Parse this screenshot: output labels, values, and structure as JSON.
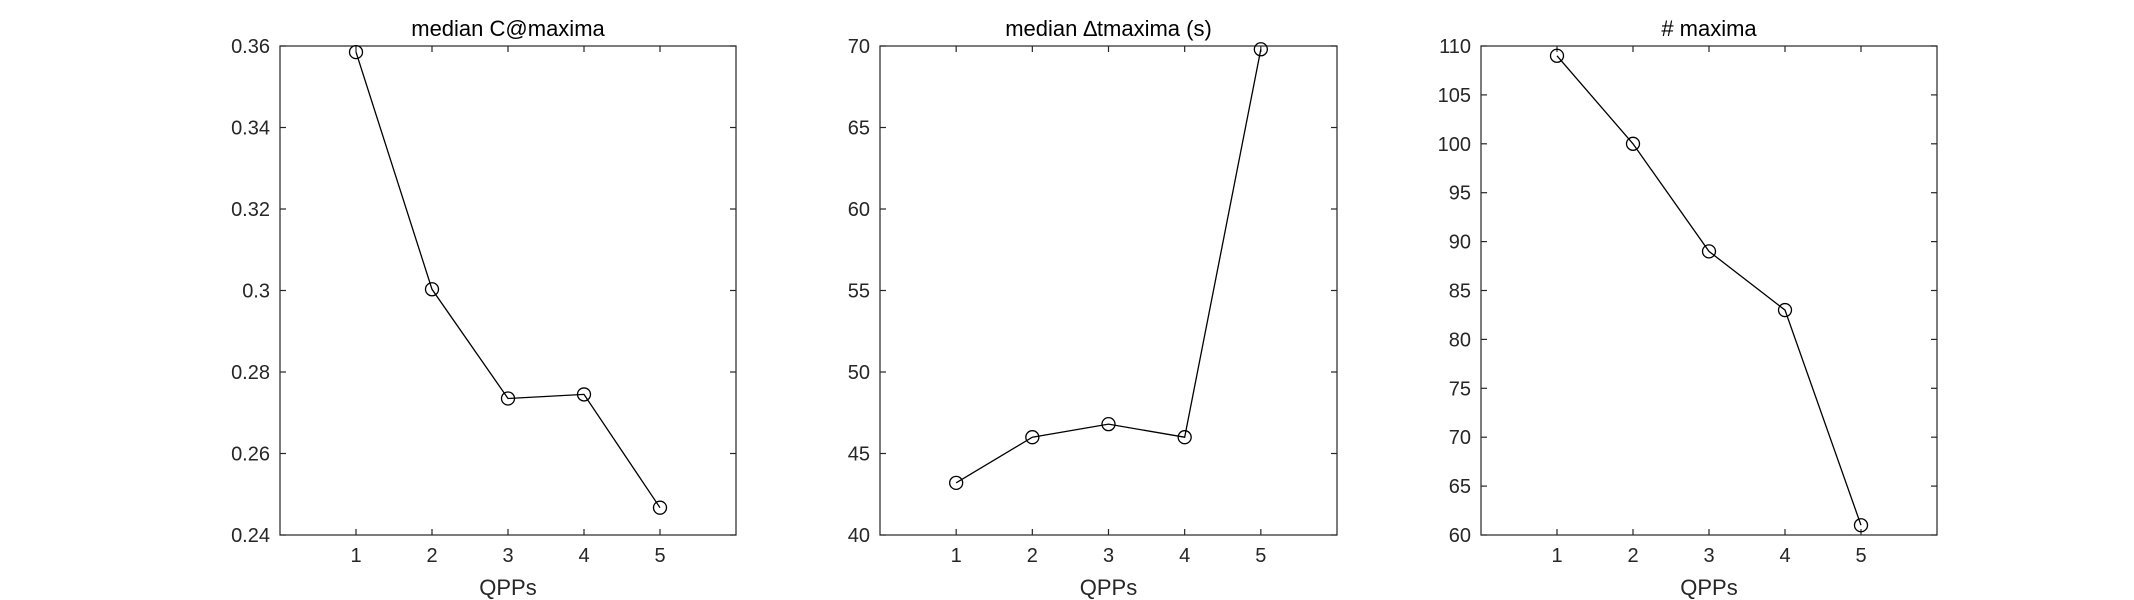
{
  "chart_data": [
    {
      "type": "line",
      "title": "median C@maxima",
      "xlabel": "QPPs",
      "ylabel": "",
      "x": [
        1,
        2,
        3,
        4,
        5
      ],
      "series": [
        {
          "values": [
            0.3585,
            0.3003,
            0.2735,
            0.2745,
            0.2467
          ]
        }
      ],
      "xlim": [
        0,
        6
      ],
      "ylim": [
        0.24,
        0.36
      ],
      "xticks": [
        "1",
        "2",
        "3",
        "4",
        "5"
      ],
      "yticks": [
        "0.24",
        "0.26",
        "0.28",
        "0.3",
        "0.32",
        "0.34",
        "0.36"
      ],
      "marker": "circle",
      "color": "#000000",
      "grid": false,
      "box": true
    },
    {
      "type": "line",
      "title": "median ∆tmaxima (s)",
      "xlabel": "QPPs",
      "ylabel": "",
      "x": [
        1,
        2,
        3,
        4,
        5
      ],
      "series": [
        {
          "values": [
            43.2,
            46.0,
            46.8,
            46.0,
            69.8
          ]
        }
      ],
      "xlim": [
        0,
        6
      ],
      "ylim": [
        40,
        70
      ],
      "xticks": [
        "1",
        "2",
        "3",
        "4",
        "5"
      ],
      "yticks": [
        "40",
        "45",
        "50",
        "55",
        "60",
        "65",
        "70"
      ],
      "marker": "circle",
      "color": "#000000",
      "grid": false,
      "box": true
    },
    {
      "type": "line",
      "title": "# maxima",
      "xlabel": "QPPs",
      "ylabel": "",
      "x": [
        1,
        2,
        3,
        4,
        5
      ],
      "series": [
        {
          "values": [
            109,
            100,
            89,
            83,
            61
          ]
        }
      ],
      "xlim": [
        0,
        6
      ],
      "ylim": [
        60,
        110
      ],
      "xticks": [
        "1",
        "2",
        "3",
        "4",
        "5"
      ],
      "yticks": [
        "60",
        "65",
        "70",
        "75",
        "80",
        "85",
        "90",
        "95",
        "100",
        "105",
        "110"
      ],
      "marker": "circle",
      "color": "#000000",
      "grid": false,
      "box": true
    }
  ]
}
